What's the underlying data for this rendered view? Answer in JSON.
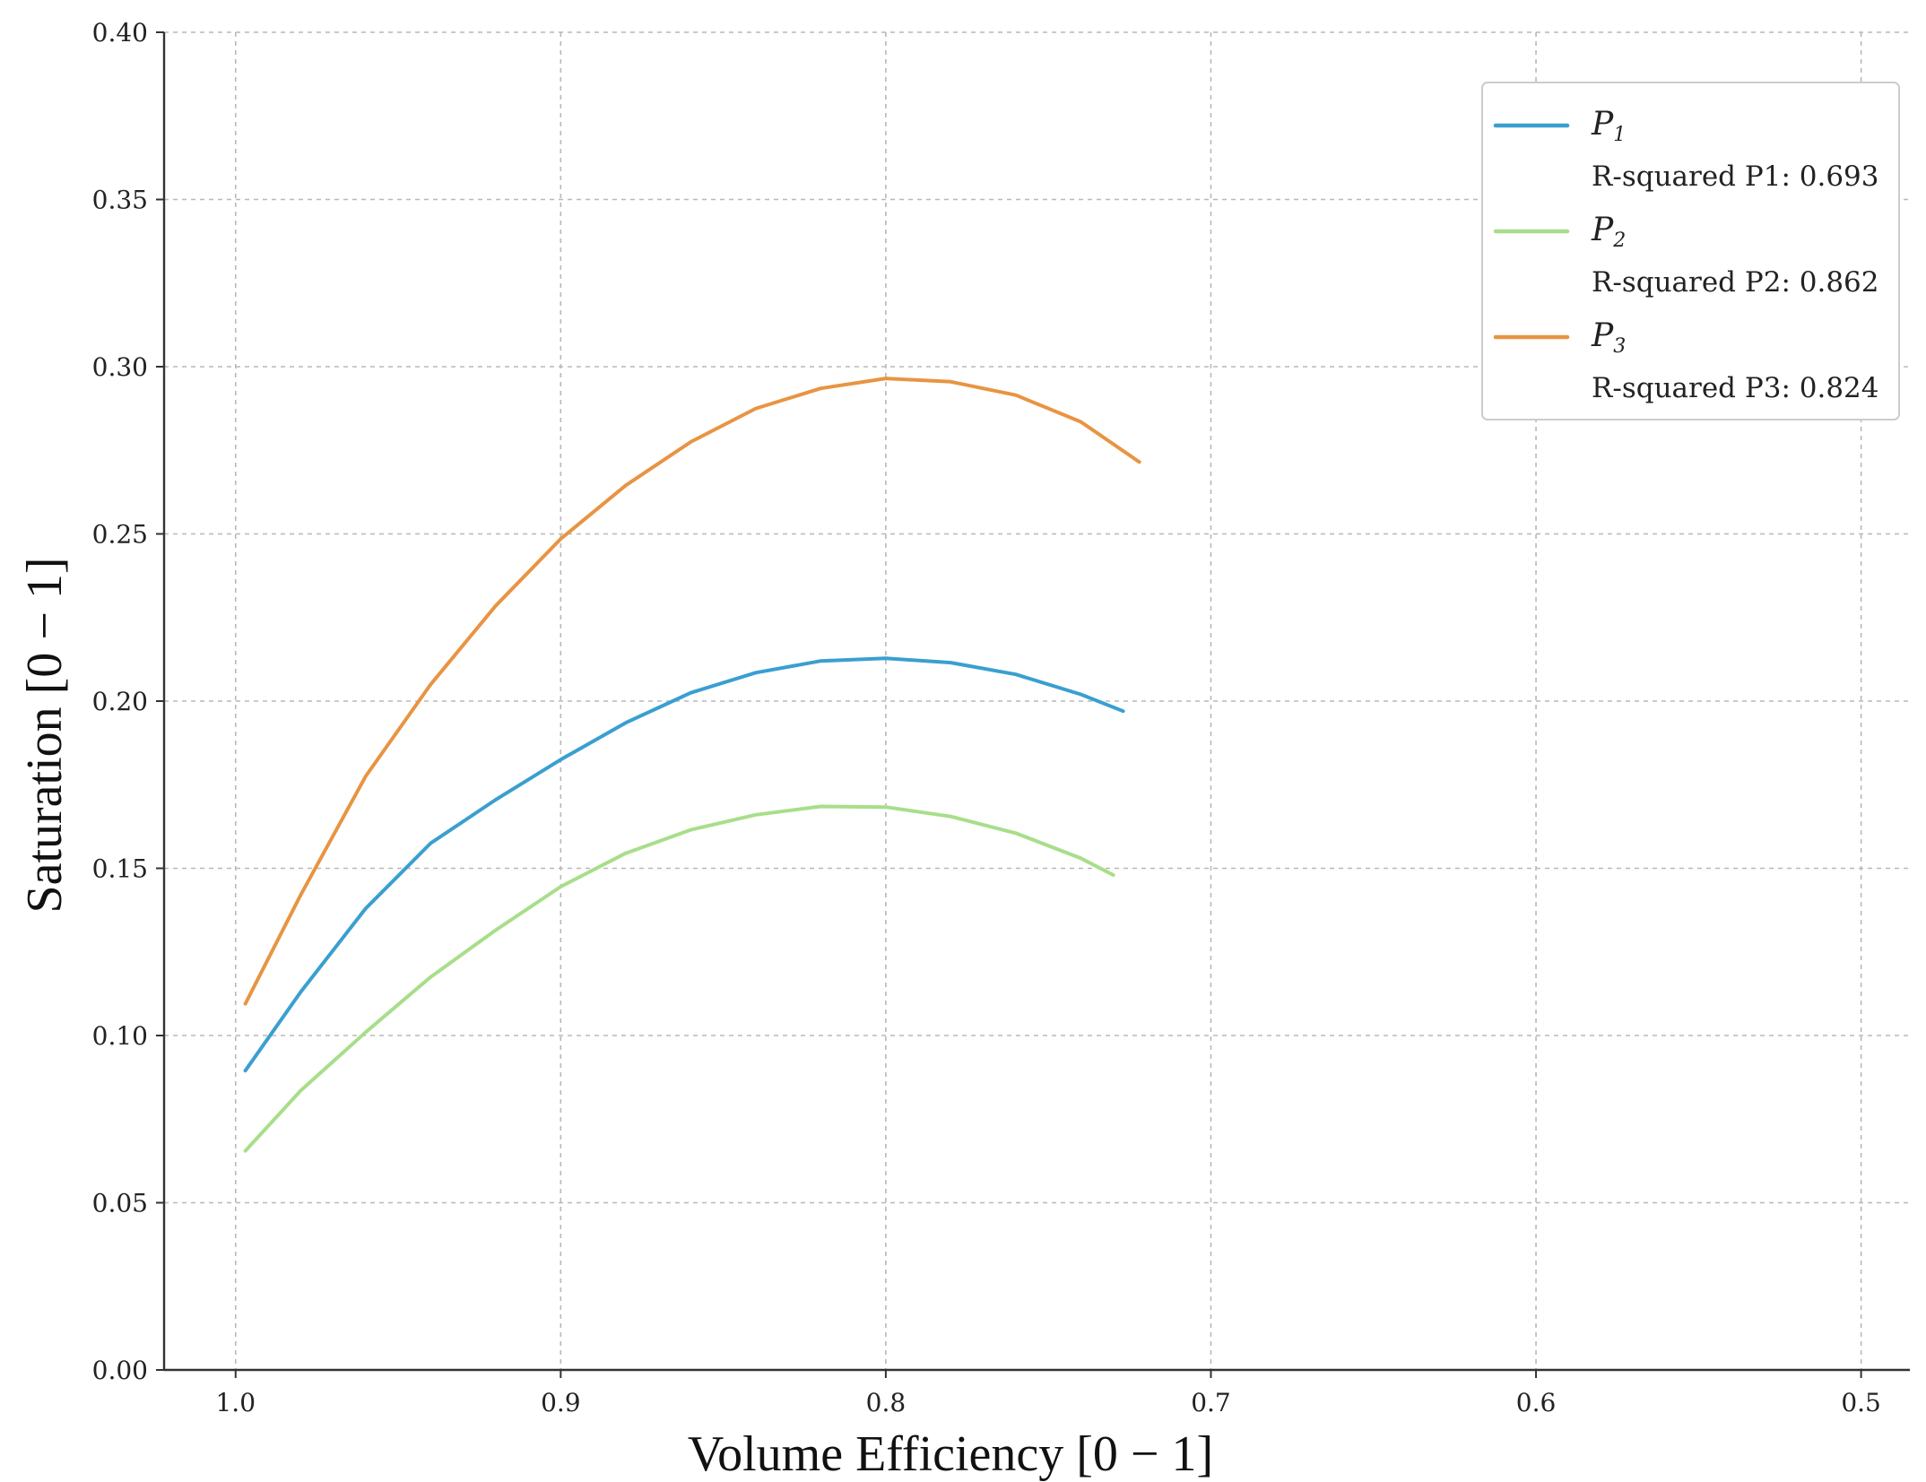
{
  "chart_data": {
    "type": "line",
    "xlabel": "Volume Efficiency  [0 − 1]",
    "ylabel": "Saturation  [0 − 1]",
    "xlim": [
      1.022,
      0.485
    ],
    "ylim": [
      0.0,
      0.4
    ],
    "x_inverted": true,
    "grid": true,
    "legend_position": "top-right",
    "xticks": [
      1.0,
      0.9,
      0.8,
      0.7,
      0.6,
      0.5
    ],
    "xtick_labels": [
      "1.0",
      "0.9",
      "0.8",
      "0.7",
      "0.6",
      "0.5"
    ],
    "yticks": [
      0.0,
      0.05,
      0.1,
      0.15,
      0.2,
      0.25,
      0.3,
      0.35,
      0.4
    ],
    "ytick_labels": [
      "0.00",
      "0.05",
      "0.10",
      "0.15",
      "0.20",
      "0.25",
      "0.30",
      "0.35",
      "0.40"
    ],
    "series": [
      {
        "name": "P1",
        "name_main": "P",
        "name_sub": "1",
        "color": "#3a9fd0",
        "annotation": "R-squared P1:  0.693",
        "x": [
          0.997,
          0.98,
          0.96,
          0.94,
          0.92,
          0.9,
          0.88,
          0.86,
          0.84,
          0.82,
          0.8,
          0.78,
          0.76,
          0.74,
          0.727
        ],
        "y": [
          0.0895,
          0.113,
          0.138,
          0.1575,
          0.1705,
          0.1825,
          0.1935,
          0.2025,
          0.2085,
          0.212,
          0.2128,
          0.2115,
          0.208,
          0.202,
          0.197
        ]
      },
      {
        "name": "P2",
        "name_main": "P",
        "name_sub": "2",
        "color": "#a8de8a",
        "annotation": "R-squared P2:  0.862",
        "x": [
          0.997,
          0.98,
          0.96,
          0.94,
          0.92,
          0.9,
          0.88,
          0.86,
          0.84,
          0.82,
          0.8,
          0.78,
          0.76,
          0.74,
          0.73
        ],
        "y": [
          0.0655,
          0.0835,
          0.101,
          0.1175,
          0.1315,
          0.1445,
          0.1545,
          0.1615,
          0.166,
          0.1685,
          0.1683,
          0.1655,
          0.1605,
          0.153,
          0.148
        ]
      },
      {
        "name": "P3",
        "name_main": "P",
        "name_sub": "3",
        "color": "#e89443",
        "annotation": "R-squared P3:  0.824",
        "x": [
          0.997,
          0.98,
          0.96,
          0.94,
          0.92,
          0.9,
          0.88,
          0.86,
          0.84,
          0.82,
          0.8,
          0.78,
          0.76,
          0.74,
          0.722
        ],
        "y": [
          0.1095,
          0.142,
          0.1775,
          0.205,
          0.2285,
          0.2485,
          0.2645,
          0.2775,
          0.2875,
          0.2935,
          0.2965,
          0.2955,
          0.2915,
          0.2835,
          0.2715
        ]
      }
    ]
  }
}
